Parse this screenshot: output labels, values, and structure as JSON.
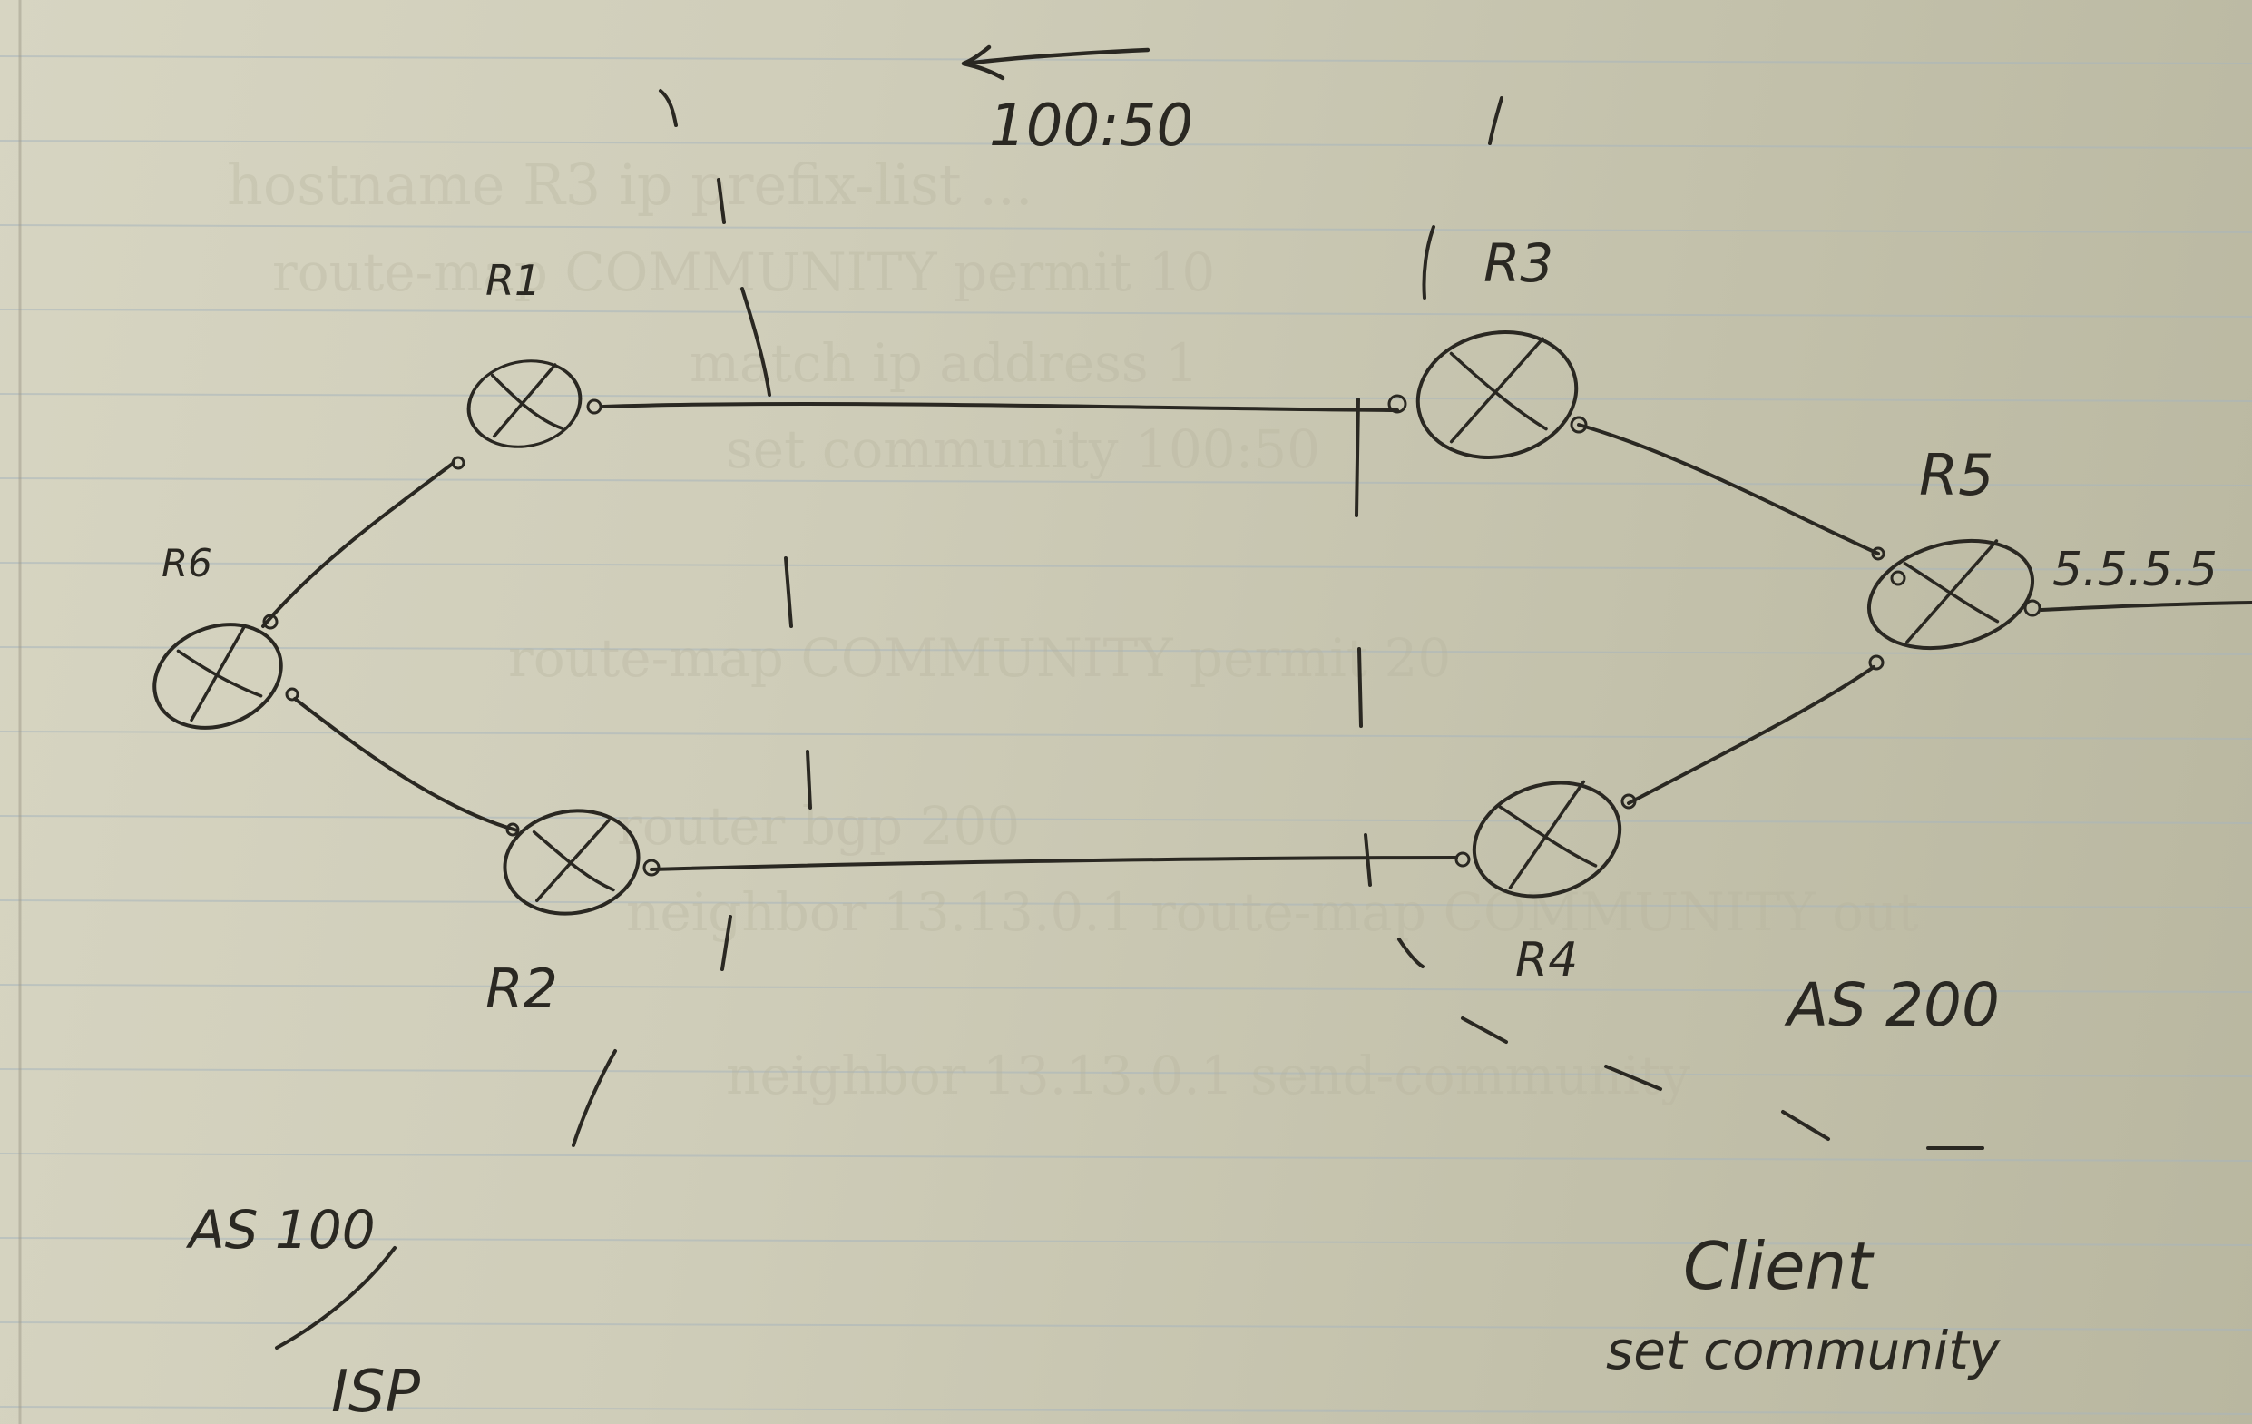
{
  "routers": [
    {
      "id": "R1",
      "label": "R1"
    },
    {
      "id": "R2",
      "label": "R2"
    },
    {
      "id": "R3",
      "label": "R3"
    },
    {
      "id": "R4",
      "label": "R4"
    },
    {
      "id": "R5",
      "label": "R5"
    },
    {
      "id": "R6",
      "label": "R6"
    }
  ],
  "annotations": {
    "community": "100:50",
    "prefix": "5.5.5.5",
    "isp_as": "AS 100",
    "isp_label": "ISP",
    "client_as": "AS 200",
    "client_label": "Client",
    "client_action": "set community"
  },
  "colors": {
    "ink": "#2a2822",
    "paper": "#cfcdb8",
    "rule_line": "#a9b6bd",
    "margin_line": "#b9a9a6"
  }
}
